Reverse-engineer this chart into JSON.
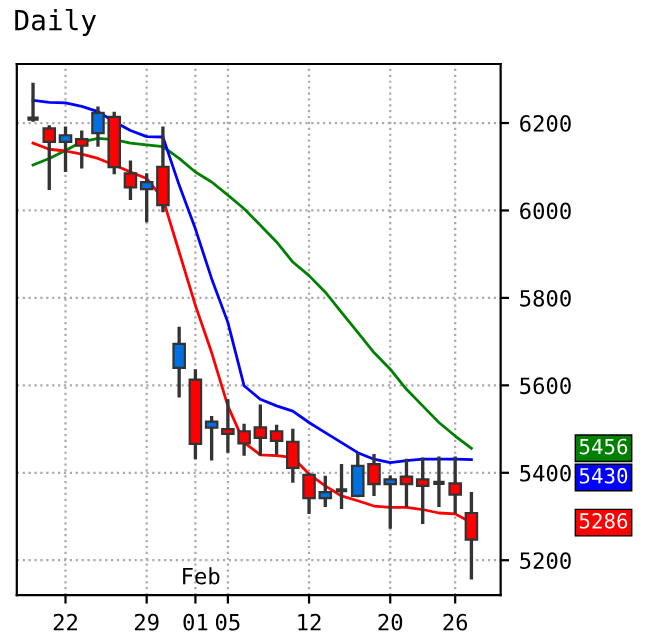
{
  "chart_data": {
    "type": "candlestick",
    "title": "Daily",
    "categories": [
      null,
      null,
      "22",
      null,
      null,
      null,
      null,
      "29",
      null,
      null,
      "01",
      null,
      "05",
      null,
      null,
      null,
      null,
      "12",
      null,
      null,
      null,
      null,
      "20",
      null,
      null,
      null,
      "26",
      null
    ],
    "ohlc": [
      [
        6210,
        6292,
        6203,
        6210
      ],
      [
        6188,
        6195,
        6047,
        6157
      ],
      [
        6157,
        6192,
        6088,
        6172
      ],
      [
        6163,
        6183,
        6096,
        6148
      ],
      [
        6177,
        6238,
        6146,
        6223
      ],
      [
        6214,
        6226,
        6083,
        6099
      ],
      [
        6085,
        6114,
        6024,
        6053
      ],
      [
        6049,
        6085,
        5973,
        6065
      ],
      [
        6100,
        6192,
        5996,
        6012
      ],
      [
        5640,
        5734,
        5572,
        5695
      ],
      [
        5613,
        5637,
        5431,
        5466
      ],
      [
        5503,
        5530,
        5428,
        5517
      ],
      [
        5500,
        5568,
        5446,
        5489
      ],
      [
        5495,
        5512,
        5439,
        5467
      ],
      [
        5504,
        5556,
        5439,
        5480
      ],
      [
        5495,
        5510,
        5441,
        5473
      ],
      [
        5471,
        5501,
        5377,
        5411
      ],
      [
        5395,
        5400,
        5306,
        5342
      ],
      [
        5342,
        5393,
        5322,
        5356
      ],
      [
        5360,
        5420,
        5317,
        5360
      ],
      [
        5347,
        5445,
        5344,
        5416
      ],
      [
        5420,
        5443,
        5347,
        5374
      ],
      [
        5374,
        5394,
        5272,
        5385
      ],
      [
        5391,
        5432,
        5322,
        5374
      ],
      [
        5385,
        5435,
        5283,
        5370
      ],
      [
        5377,
        5437,
        5322,
        5377
      ],
      [
        5376,
        5437,
        5307,
        5350
      ],
      [
        5308,
        5356,
        5156,
        5247
      ]
    ],
    "colors": [
      "#333333",
      "#ff0000",
      "#0070e0",
      "#ff0000",
      "#0070e0",
      "#ff0000",
      "#ff0000",
      "#0070e0",
      "#ff0000",
      "#0070e0",
      "#ff0000",
      "#0070e0",
      "#ff0000",
      "#ff0000",
      "#ff0000",
      "#ff0000",
      "#ff0000",
      "#ff0000",
      "#0070e0",
      "#333333",
      "#0070e0",
      "#ff0000",
      "#0070e0",
      "#ff0000",
      "#ff0000",
      "#333333",
      "#ff0000",
      "#ff0000"
    ],
    "series": [
      {
        "type": "line",
        "color": "#008000",
        "values": [
          6104,
          6119,
          6137,
          6157,
          6165,
          6162,
          6154,
          6150,
          6146,
          6119,
          6088,
          6065,
          6035,
          6004,
          5966,
          5928,
          5882,
          5851,
          5813,
          5767,
          5721,
          5675,
          5637,
          5591,
          5553,
          5515,
          5484,
          5456
        ]
      },
      {
        "type": "line",
        "color": "#0000ff",
        "values": [
          6252,
          6247,
          6246,
          6238,
          6226,
          6203,
          6183,
          6169,
          6168,
          6058,
          5958,
          5844,
          5744,
          5599,
          5568,
          5553,
          5541,
          5515,
          5492,
          5469,
          5446,
          5431,
          5423,
          5428,
          5431,
          5431,
          5431,
          5430
        ]
      },
      {
        "type": "line",
        "color": "#ff0000",
        "values": [
          6154,
          6140,
          6136,
          6129,
          6119,
          6104,
          6088,
          6073,
          6027,
          5905,
          5783,
          5675,
          5553,
          5469,
          5441,
          5439,
          5435,
          5397,
          5370,
          5347,
          5336,
          5324,
          5321,
          5321,
          5316,
          5308,
          5306,
          5286
        ]
      }
    ],
    "ylim": [
      5120,
      6335
    ],
    "yticks": [
      5200,
      5400,
      5600,
      5800,
      6000,
      6200
    ],
    "grid": true,
    "annotations": [
      "Feb",
      "5456",
      "5430",
      "5286"
    ]
  }
}
